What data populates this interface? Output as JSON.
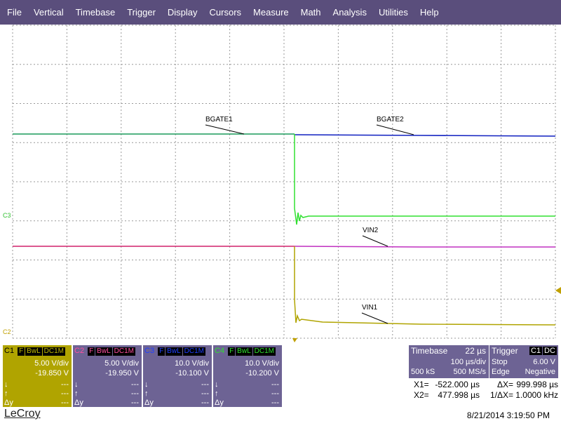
{
  "menu": [
    "File",
    "Vertical",
    "Timebase",
    "Trigger",
    "Display",
    "Cursors",
    "Measure",
    "Math",
    "Analysis",
    "Utilities",
    "Help"
  ],
  "trace_labels": [
    "BGATE1",
    "BGATE2",
    "VIN2",
    "VIN1"
  ],
  "side_markers": [
    "C3",
    "C2"
  ],
  "channels": [
    {
      "name": "C1",
      "tags": [
        "F",
        "BwL",
        "DC1M"
      ],
      "scale": "5.00 V/div",
      "offset": "-19.850 V",
      "rows": [
        [
          "↓",
          "---"
        ],
        [
          "↑",
          "---"
        ],
        [
          "Δy",
          "---"
        ]
      ]
    },
    {
      "name": "C2",
      "tags": [
        "F",
        "BwL",
        "DC1M"
      ],
      "scale": "5.00 V/div",
      "offset": "-19.950 V",
      "rows": [
        [
          "↓",
          "---"
        ],
        [
          "↑",
          "---"
        ],
        [
          "Δy",
          "---"
        ]
      ]
    },
    {
      "name": "C3",
      "tags": [
        "F",
        "BwL",
        "DC1M"
      ],
      "scale": "10.0 V/div",
      "offset": "-10.100 V",
      "rows": [
        [
          "↓",
          "---"
        ],
        [
          "↑",
          "---"
        ],
        [
          "Δy",
          "---"
        ]
      ]
    },
    {
      "name": "C4",
      "tags": [
        "F",
        "BwL",
        "DC1M"
      ],
      "scale": "10.0 V/div",
      "offset": "-10.200 V",
      "rows": [
        [
          "↓",
          "---"
        ],
        [
          "↑",
          "---"
        ],
        [
          "Δy",
          "---"
        ]
      ]
    }
  ],
  "timebase": {
    "title": "Timebase",
    "delay": "22 µs",
    "scale": "100 µs/div",
    "samples": "500 kS",
    "rate": "500 MS/s"
  },
  "trigger": {
    "title": "Trigger",
    "source": "C1",
    "coupling": "DC",
    "mode": "Stop",
    "level": "6.00 V",
    "type": "Edge",
    "slope": "Negative"
  },
  "cursors": [
    [
      "X1=",
      "-522.000 µs",
      "ΔX=",
      "999.998 µs"
    ],
    [
      "X2=",
      "477.998 µs",
      "1/ΔX=",
      "1.0000 kHz"
    ]
  ],
  "footer": {
    "brand": "LeCroy",
    "timestamp": "8/21/2014 3:19:50 PM"
  }
}
